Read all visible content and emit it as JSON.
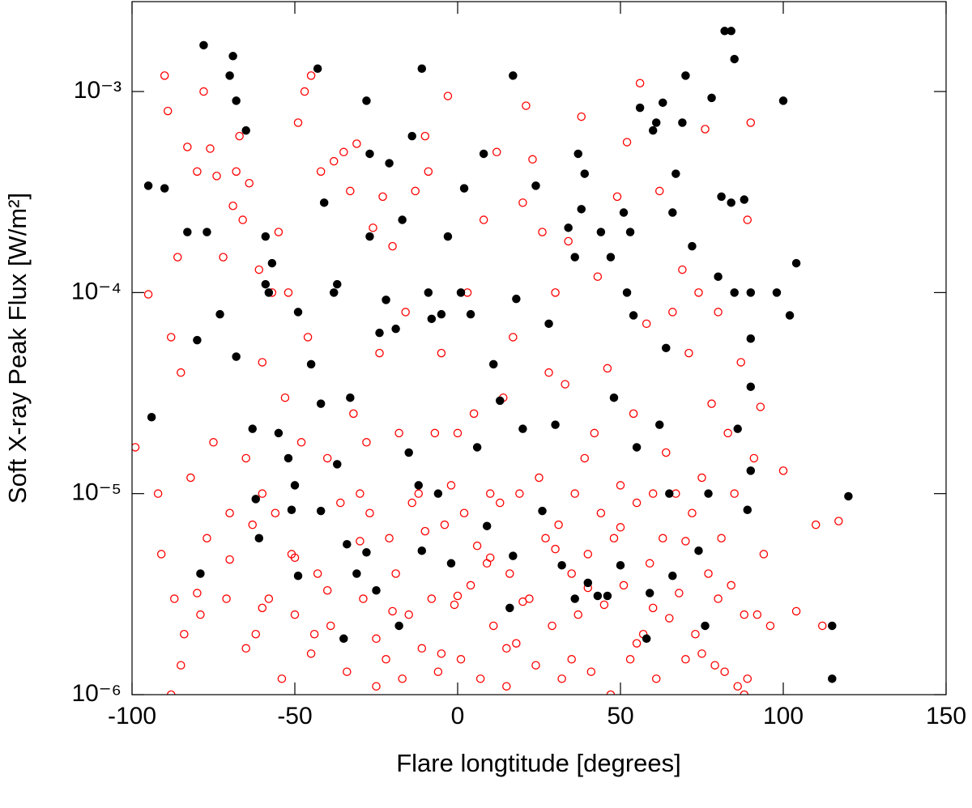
{
  "chart_data": {
    "type": "scatter",
    "x_label": "Flare longtitude [degrees]",
    "y_label": "Soft X-ray Peak Flux [W/m²]",
    "xlim": [
      -100,
      150
    ],
    "xticks": [
      -100,
      -50,
      0,
      50,
      100,
      150
    ],
    "ylim": [
      1e-06,
      0.0028
    ],
    "y_scale": "log",
    "yticks": [
      {
        "value": 1e-06,
        "label": "10⁻⁶"
      },
      {
        "value": 1e-05,
        "label": "10⁻⁵"
      },
      {
        "value": 0.0001,
        "label": "10⁻⁴"
      },
      {
        "value": 0.001,
        "label": "10⁻³"
      }
    ],
    "grid": false,
    "series": [
      {
        "color": "#ff0000",
        "marker": "open",
        "x": [
          -99,
          -95,
          -92,
          -91,
          -90,
          -89,
          -88,
          -87,
          -86,
          -85,
          -84,
          -83,
          -82,
          -80,
          -79,
          -78,
          -77,
          -76,
          -75,
          -74,
          -72,
          -71,
          -70,
          -69,
          -68,
          -67,
          -66,
          -65,
          -64,
          -63,
          -62,
          -61,
          -60,
          -58,
          -57,
          -56,
          -55,
          -54,
          -53,
          -52,
          -51,
          -50,
          -49,
          -48,
          -47,
          -46,
          -45,
          -44,
          -43,
          -42,
          -40,
          -39,
          -38,
          -36,
          -35,
          -34,
          -33,
          -32,
          -31,
          -30,
          -29,
          -28,
          -27,
          -26,
          -25,
          -24,
          -23,
          -22,
          -21,
          -20,
          -19,
          -18,
          -17,
          -16,
          -15,
          -14,
          -13,
          -12,
          -11,
          -10,
          -9,
          -8,
          -7,
          -6,
          -5,
          -4,
          -3,
          -2,
          -1,
          0,
          1,
          2,
          3,
          4,
          5,
          6,
          7,
          8,
          9,
          10,
          11,
          12,
          13,
          14,
          15,
          16,
          17,
          18,
          19,
          20,
          21,
          22,
          23,
          24,
          25,
          26,
          27,
          28,
          29,
          30,
          31,
          32,
          33,
          34,
          35,
          36,
          37,
          38,
          39,
          40,
          41,
          42,
          43,
          44,
          45,
          46,
          47,
          48,
          49,
          50,
          51,
          52,
          53,
          54,
          55,
          56,
          57,
          58,
          59,
          60,
          61,
          62,
          63,
          64,
          65,
          66,
          67,
          68,
          69,
          70,
          71,
          72,
          73,
          74,
          75,
          76,
          77,
          78,
          79,
          80,
          81,
          82,
          83,
          84,
          85,
          86,
          87,
          88,
          89,
          90,
          91,
          92,
          93,
          94,
          96,
          100,
          104,
          110,
          112,
          117,
          -85,
          -65,
          -45,
          -25,
          -5,
          15,
          35,
          55,
          75,
          89,
          -80,
          -60,
          -40,
          -20,
          0,
          20,
          40,
          60,
          80,
          -70,
          -50,
          -30,
          -10,
          10,
          30,
          50,
          70,
          -88,
          88,
          -60
        ],
        "values": [
          1.7e-05,
          9.8e-05,
          1e-05,
          5e-06,
          0.0012,
          0.0008,
          6e-05,
          3e-06,
          0.00015,
          4e-05,
          2e-06,
          0.00053,
          1.2e-05,
          0.0004,
          2.5e-06,
          0.001,
          6e-06,
          0.00052,
          1.8e-05,
          0.00038,
          0.00015,
          3e-06,
          8e-06,
          0.00027,
          0.0004,
          0.0006,
          0.00023,
          1.5e-05,
          0.00035,
          7e-06,
          2e-06,
          0.00013,
          4.5e-05,
          3e-06,
          0.0001,
          8e-06,
          0.0002,
          1.2e-06,
          3e-05,
          0.0001,
          5e-06,
          2.5e-06,
          0.0007,
          1.8e-05,
          0.001,
          6e-05,
          0.0012,
          2e-06,
          4e-06,
          0.0004,
          1.5e-05,
          2.2e-06,
          0.00045,
          9e-06,
          0.0005,
          1.3e-06,
          0.00032,
          2.5e-05,
          0.00055,
          1e-05,
          3e-06,
          1.8e-05,
          8e-06,
          0.00021,
          1.1e-06,
          5e-05,
          0.0003,
          1.5e-06,
          6e-06,
          0.00017,
          4e-06,
          2e-05,
          1.2e-06,
          8e-05,
          2.5e-06,
          9e-06,
          0.00032,
          1e-05,
          1.7e-06,
          0.0006,
          0.0004,
          3e-06,
          2e-05,
          1.3e-06,
          5e-05,
          7e-06,
          0.00095,
          1.1e-05,
          2.8e-06,
          2e-05,
          1.5e-06,
          8e-06,
          0.0001,
          3.5e-06,
          2.5e-05,
          5.5e-06,
          1.2e-06,
          0.00023,
          4.5e-06,
          1e-05,
          2.2e-06,
          0.0005,
          9e-06,
          3e-05,
          1.1e-06,
          4e-06,
          6e-05,
          1.8e-06,
          1e-05,
          0.00028,
          0.00085,
          3e-06,
          0.00046,
          1.4e-06,
          1.2e-05,
          0.0002,
          6e-06,
          4e-05,
          2.2e-06,
          0.0001,
          7e-06,
          1.2e-06,
          3.5e-05,
          0.00018,
          4e-06,
          1e-05,
          2.5e-06,
          0.00075,
          1.5e-05,
          5e-06,
          1.3e-06,
          2e-05,
          0.00012,
          8e-06,
          2.8e-06,
          4.2e-05,
          1e-06,
          6e-06,
          0.0003,
          1.1e-05,
          3.5e-06,
          0.00056,
          1.5e-06,
          2.5e-05,
          9e-06,
          0.0011,
          2e-06,
          7e-05,
          4.5e-06,
          1e-05,
          1.2e-06,
          0.00032,
          6e-06,
          1.6e-05,
          2.4e-06,
          8e-05,
          1e-05,
          3.2e-06,
          0.00013,
          1.5e-06,
          5e-05,
          8e-06,
          2e-06,
          0.0001,
          1.2e-05,
          0.00065,
          4e-06,
          2.8e-05,
          1.4e-06,
          8e-05,
          6e-06,
          1.3e-06,
          2e-05,
          3.5e-06,
          1e-05,
          1.1e-06,
          4.5e-05,
          2.5e-06,
          0.00023,
          0.0007,
          1.5e-05,
          2.5e-06,
          2.7e-05,
          5e-06,
          2.2e-06,
          1.3e-05,
          2.6e-06,
          7e-06,
          2.2e-06,
          7.3e-06,
          1.4e-06,
          1.7e-06,
          1.6e-06,
          1.9e-06,
          1.6e-06,
          1.7e-06,
          1.5e-06,
          1.8e-06,
          1.6e-06,
          1.2e-06,
          3.2e-06,
          2.7e-06,
          3.3e-06,
          2.6e-06,
          3.1e-06,
          2.9e-06,
          3.4e-06,
          2.7e-06,
          3e-06,
          4.7e-06,
          4.8e-06,
          5.8e-06,
          6.5e-06,
          4.8e-06,
          5.3e-06,
          6.8e-06,
          5.8e-06,
          1e-06,
          1e-06,
          1e-05
        ]
      },
      {
        "color": "#000000",
        "marker": "filled",
        "x": [
          -95,
          -94,
          -90,
          -83,
          -80,
          -79,
          -78,
          -77,
          -73,
          -70,
          -69,
          -68,
          -68,
          -65,
          -63,
          -62,
          -61,
          -59,
          -59,
          -58,
          -57,
          -55,
          -52,
          -51,
          -50,
          -49,
          -49,
          -45,
          -43,
          -42,
          -42,
          -41,
          -38,
          -37,
          -37,
          -35,
          -34,
          -33,
          -31,
          -28,
          -28,
          -27,
          -27,
          -25,
          -24,
          -22,
          -21,
          -19,
          -18,
          -17,
          -15,
          -14,
          -12,
          -11,
          -11,
          -9,
          -8,
          -6,
          -5,
          -3,
          -2,
          1,
          2,
          4,
          6,
          8,
          9,
          11,
          13,
          16,
          17,
          17,
          18,
          20,
          24,
          26,
          28,
          30,
          32,
          34,
          36,
          36,
          37,
          38,
          39,
          40,
          43,
          44,
          46,
          47,
          48,
          50,
          51,
          52,
          53,
          54,
          55,
          56,
          58,
          59,
          60,
          61,
          62,
          63,
          64,
          65,
          66,
          66,
          67,
          69,
          70,
          72,
          74,
          76,
          77,
          78,
          80,
          81,
          82,
          84,
          85,
          84,
          85,
          86,
          88,
          89,
          90,
          90,
          90,
          90,
          98,
          100,
          102,
          104,
          115,
          115,
          120
        ],
        "values": [
          0.00034,
          2.4e-05,
          0.00033,
          0.0002,
          5.8e-05,
          4e-06,
          0.0017,
          0.0002,
          7.8e-05,
          0.0012,
          0.0015,
          0.0009,
          4.8e-05,
          0.00064,
          2.1e-05,
          9.4e-06,
          6e-06,
          0.00019,
          0.00011,
          0.0001,
          0.00014,
          2e-05,
          1.5e-05,
          8.3e-06,
          1.1e-05,
          8e-05,
          3.9e-06,
          4.4e-05,
          0.0013,
          2.8e-05,
          8.2e-06,
          0.00028,
          0.0001,
          0.00011,
          1.4e-05,
          1.9e-06,
          5.6e-06,
          3e-05,
          4e-06,
          0.0009,
          5.1e-06,
          0.00049,
          0.00019,
          3.3e-06,
          6.3e-05,
          9.2e-05,
          0.00044,
          6.6e-05,
          2.2e-06,
          0.00023,
          1.6e-05,
          0.0006,
          1.1e-05,
          5.2e-06,
          0.0013,
          0.0001,
          7.4e-05,
          1e-05,
          7.8e-05,
          0.00019,
          4.5e-06,
          0.0001,
          0.00033,
          7.8e-05,
          1.7e-05,
          0.00049,
          6.9e-06,
          4.4e-05,
          2.9e-05,
          2.7e-06,
          4.9e-06,
          0.0012,
          9.3e-05,
          2.1e-05,
          0.00034,
          8.2e-06,
          7e-05,
          2.2e-05,
          4.4e-06,
          0.00021,
          0.00015,
          3e-06,
          0.00049,
          0.00026,
          0.00039,
          3.6e-06,
          3.1e-06,
          0.0002,
          3.1e-06,
          0.00015,
          3e-05,
          4.4e-06,
          0.00025,
          0.0001,
          0.0002,
          7.7e-05,
          1.7e-05,
          0.00083,
          1.9e-06,
          3.2e-06,
          0.00064,
          0.0007,
          2.2e-05,
          0.00088,
          5.3e-05,
          1e-05,
          3.9e-06,
          0.00025,
          0.00039,
          0.0007,
          0.0012,
          0.00017,
          5.2e-06,
          2.2e-06,
          1e-05,
          0.00093,
          0.00012,
          0.0003,
          0.002,
          0.002,
          0.00145,
          0.00028,
          0.0001,
          2.1e-05,
          0.00029,
          8.3e-06,
          0.0001,
          5.9e-05,
          1.3e-05,
          3.4e-05,
          0.0001,
          0.0009,
          7.7e-05,
          0.00014,
          2.2e-06,
          1.2e-06,
          9.7e-06
        ]
      }
    ]
  }
}
